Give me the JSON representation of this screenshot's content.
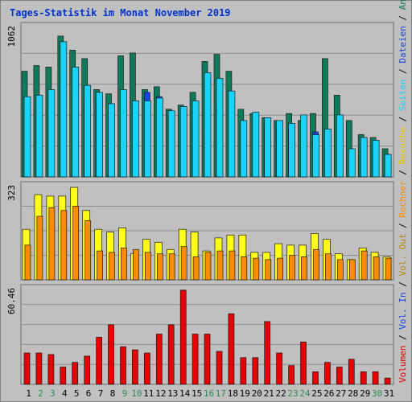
{
  "title": "Tages-Statistik im Monat November 2019",
  "colors": {
    "background": "#c0c0c0",
    "plot_bg": "#c0c0c0",
    "grid": "#8e8e8e",
    "anfragen": "#0f7a5a",
    "dateien": "#1a44e0",
    "seiten": "#18d4ff",
    "besuche": "#ffff1a",
    "rechner": "#ff8c00",
    "volumen_in": "#e60000",
    "weekend_label": "#2e8b57",
    "weekday_label": "#000000",
    "legend_sep": "#000000"
  },
  "legend": {
    "top": [
      {
        "text": "Anfragen",
        "color": "#0f7a5a"
      },
      {
        "text": "Dateien",
        "color": "#1a44e0"
      },
      {
        "text": "Seiten",
        "color": "#18d4ff"
      },
      {
        "text": "Besuche",
        "color": "#e6c800"
      },
      {
        "text": "Rechner",
        "color": "#ff8c00"
      },
      {
        "text": "Vol. Out",
        "color": "#b8860b"
      },
      {
        "text": "Vol. In",
        "color": "#1a44e0"
      },
      {
        "text": "Volumen",
        "color": "#e60000"
      }
    ],
    "separator": " / "
  },
  "chart_data": [
    {
      "type": "bar",
      "panel": "hits",
      "ymax_label": "1062",
      "ylim": [
        0,
        1062
      ],
      "x": [
        "1",
        "2",
        "3",
        "4",
        "5",
        "6",
        "7",
        "8",
        "9",
        "10",
        "11",
        "12",
        "13",
        "14",
        "15",
        "16",
        "17",
        "18",
        "19",
        "20",
        "21",
        "22",
        "23",
        "24",
        "25",
        "26",
        "27",
        "28",
        "29",
        "30",
        "31"
      ],
      "weekend_days": [
        "2",
        "3",
        "9",
        "10",
        "16",
        "17",
        "23",
        "24",
        "30"
      ],
      "series": [
        {
          "name": "Anfragen",
          "values": [
            750,
            790,
            780,
            1000,
            900,
            840,
            620,
            590,
            860,
            880,
            620,
            640,
            480,
            510,
            600,
            820,
            870,
            750,
            480,
            450,
            420,
            400,
            450,
            400,
            450,
            840,
            580,
            400,
            300,
            280,
            200
          ]
        },
        {
          "name": "Dateien",
          "values": [
            440,
            430,
            440,
            700,
            560,
            560,
            520,
            470,
            450,
            450,
            600,
            570,
            440,
            380,
            370,
            330,
            520,
            460,
            390,
            390,
            360,
            340,
            340,
            340,
            320,
            230,
            360,
            160,
            180,
            180,
            160
          ]
        },
        {
          "name": "Seiten",
          "values": [
            570,
            580,
            620,
            960,
            780,
            650,
            600,
            520,
            620,
            540,
            540,
            560,
            470,
            500,
            540,
            740,
            700,
            610,
            400,
            460,
            420,
            400,
            380,
            440,
            300,
            340,
            440,
            200,
            280,
            260,
            160
          ]
        }
      ]
    },
    {
      "type": "bar",
      "panel": "visits",
      "ymax_label": "323",
      "ylim": [
        0,
        323
      ],
      "x": [
        "1",
        "2",
        "3",
        "4",
        "5",
        "6",
        "7",
        "8",
        "9",
        "10",
        "11",
        "12",
        "13",
        "14",
        "15",
        "16",
        "17",
        "18",
        "19",
        "20",
        "21",
        "22",
        "23",
        "24",
        "25",
        "26",
        "27",
        "28",
        "29",
        "30",
        "31"
      ],
      "series": [
        {
          "name": "Besuche",
          "values": [
            175,
            295,
            290,
            290,
            320,
            240,
            175,
            165,
            180,
            90,
            140,
            130,
            105,
            175,
            165,
            100,
            145,
            155,
            155,
            95,
            95,
            125,
            120,
            120,
            160,
            140,
            90,
            70,
            110,
            95,
            80
          ]
        },
        {
          "name": "Rechner",
          "values": [
            120,
            220,
            250,
            240,
            255,
            205,
            100,
            95,
            110,
            105,
            95,
            90,
            90,
            115,
            80,
            95,
            100,
            100,
            80,
            75,
            70,
            75,
            85,
            80,
            105,
            90,
            70,
            70,
            100,
            80,
            75
          ]
        }
      ]
    },
    {
      "type": "bar",
      "panel": "volume",
      "ymax_label": "60.46",
      "ylim": [
        0,
        60.46
      ],
      "x": [
        "1",
        "2",
        "3",
        "4",
        "5",
        "6",
        "7",
        "8",
        "9",
        "10",
        "11",
        "12",
        "13",
        "14",
        "15",
        "16",
        "17",
        "18",
        "19",
        "20",
        "21",
        "22",
        "23",
        "24",
        "25",
        "26",
        "27",
        "28",
        "29",
        "30",
        "31"
      ],
      "series": [
        {
          "name": "Volumen",
          "values": [
            20,
            20,
            19,
            11,
            14,
            18,
            30,
            38,
            24,
            22,
            20,
            32,
            38,
            60,
            32,
            32,
            21,
            45,
            17,
            17,
            40,
            20,
            12,
            27,
            8,
            14,
            11,
            16,
            8,
            8,
            4
          ]
        }
      ]
    }
  ]
}
